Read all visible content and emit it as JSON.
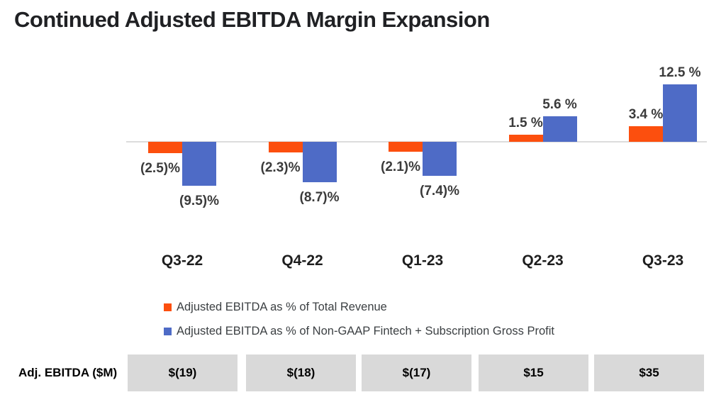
{
  "title": "Continued Adjusted EBITDA Margin Expansion",
  "colors": {
    "orange": "#fc4f0e",
    "blue": "#4e6bc6",
    "axis_line": "#dcdcdc",
    "table_box_bg": "#d9d9d9",
    "title_text": "#202124",
    "label_text": "#3b3b3b"
  },
  "chart_data": {
    "type": "bar",
    "categories": [
      "Q3-22",
      "Q4-22",
      "Q1-23",
      "Q2-23",
      "Q3-23"
    ],
    "series": [
      {
        "name": "Adjusted EBITDA as % of Total Revenue",
        "color": "#fc4f0e",
        "values": [
          -2.5,
          -2.3,
          -2.1,
          1.5,
          3.4
        ],
        "labels": [
          "(2.5)%",
          "(2.3)%",
          "(2.1)%",
          "1.5 %",
          "3.4 %"
        ]
      },
      {
        "name": "Adjusted EBITDA as % of Non-GAAP Fintech + Subscription Gross Profit",
        "color": "#4e6bc6",
        "values": [
          -9.5,
          -8.7,
          -7.4,
          5.6,
          12.5
        ],
        "labels": [
          "(9.5)%",
          "(8.7)%",
          "(7.4)%",
          "5.6 %",
          "12.5 %"
        ]
      }
    ],
    "ylim": [
      -10.5,
      13.5
    ],
    "baseline": 0,
    "grid": false,
    "y_axis_visible": false,
    "legend_position": "bottom-left",
    "data_labels": true
  },
  "table": {
    "label": "Adj. EBITDA ($M)",
    "values": [
      "$(19)",
      "$(18)",
      "$(17)",
      "$15",
      "$35"
    ]
  }
}
